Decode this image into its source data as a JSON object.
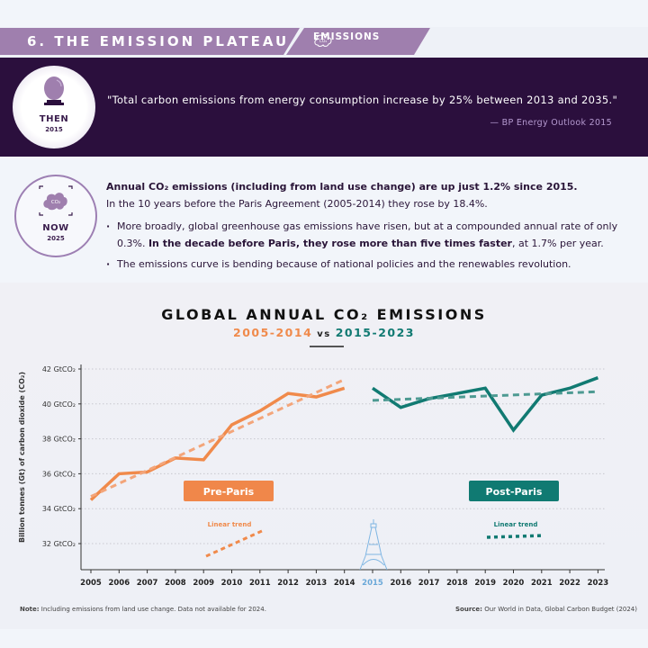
{
  "banner": {
    "title": "6. THE EMISSION PLATEAU",
    "tag_label": "EMISSIONS",
    "tag_icon": "co2-cloud-icon",
    "color": "#9f7fae"
  },
  "then": {
    "badge_label": "THEN",
    "badge_year": "2015",
    "icon": "crystal-ball-icon",
    "quote": "\"Total carbon emissions from energy consumption increase by 25% between 2013 and 2035.\"",
    "source": "— BP Energy Outlook 2015"
  },
  "now": {
    "badge_label": "NOW",
    "badge_year": "2025",
    "icon": "co2-cloud-icon",
    "lead_bold": "Annual CO₂ emissions (including from land use change) are up just 1.2% since 2015.",
    "lead_rest": "In the 10 years before the Paris Agreement (2005-2014) they rose by 18.4%.",
    "bullets": [
      {
        "pre": "More broadly, global greenhouse gas emissions have risen, but at a compounded annual rate of only 0.3%. ",
        "bold": "In the decade before Paris, they rose more than five times faster",
        "post": ", at 1.7% per year."
      },
      {
        "pre": "The emissions curve is bending because of national policies and the renewables revolution.",
        "bold": "",
        "post": ""
      }
    ]
  },
  "chart": {
    "title": "GLOBAL ANNUAL CO₂ EMISSIONS",
    "sub_a": "2005-2014",
    "sub_vs": " vs ",
    "sub_b": "2015-2023",
    "pre_label": "Pre-Paris",
    "post_label": "Post-Paris",
    "trend_label": "Linear trend",
    "paris_icon": "eiffel-tower-icon"
  },
  "footer": {
    "note_label": "Note:",
    "note_text": " Including emissions from land use change. Data not available for 2024.",
    "source_label": "Source:",
    "source_text": " Our World in Data, Global Carbon Budget (2024)"
  },
  "chart_data": {
    "type": "line",
    "title": "Global Annual CO₂ Emissions",
    "subtitle": "2005-2014 vs 2015-2023",
    "xlabel": "",
    "ylabel": "Billion tonnes (Gt) of carbon dioxide (CO₂)",
    "ylim": [
      31,
      42
    ],
    "yticks": [
      32,
      34,
      36,
      38,
      40,
      42
    ],
    "ytick_labels": [
      "32 GtCO₂",
      "34 GtCO₂",
      "36 GtCO₂",
      "38 GtCO₂",
      "40 GtCO₂",
      "42 GtCO₂"
    ],
    "x": [
      2005,
      2006,
      2007,
      2008,
      2009,
      2010,
      2011,
      2012,
      2013,
      2014,
      2015,
      2016,
      2017,
      2018,
      2019,
      2020,
      2021,
      2022,
      2023
    ],
    "grid": "horizontal dotted",
    "highlight_x": 2015,
    "series": [
      {
        "name": "Pre-Paris",
        "color": "#f08a4b",
        "x": [
          2005,
          2006,
          2007,
          2008,
          2009,
          2010,
          2011,
          2012,
          2013,
          2014
        ],
        "values": [
          34.5,
          36.0,
          36.1,
          36.9,
          36.8,
          38.8,
          39.6,
          40.6,
          40.4,
          40.9
        ]
      },
      {
        "name": "Pre-Paris linear trend",
        "color": "#f3a57a",
        "style": "dashed",
        "x": [
          2005,
          2014
        ],
        "values": [
          34.7,
          41.4
        ]
      },
      {
        "name": "Post-Paris",
        "color": "#117a72",
        "x": [
          2015,
          2016,
          2017,
          2018,
          2019,
          2020,
          2021,
          2022,
          2023
        ],
        "values": [
          40.9,
          39.8,
          40.3,
          40.6,
          40.9,
          38.5,
          40.5,
          40.9,
          41.5
        ]
      },
      {
        "name": "Post-Paris linear trend",
        "color": "#4d9a92",
        "style": "dashed",
        "x": [
          2015,
          2023
        ],
        "values": [
          40.2,
          40.7
        ]
      }
    ],
    "legend": [
      "Pre-Paris",
      "Post-Paris",
      "Linear trend"
    ],
    "annotations": [
      "Pre-Paris",
      "Post-Paris",
      "Linear trend",
      "Linear trend"
    ]
  }
}
